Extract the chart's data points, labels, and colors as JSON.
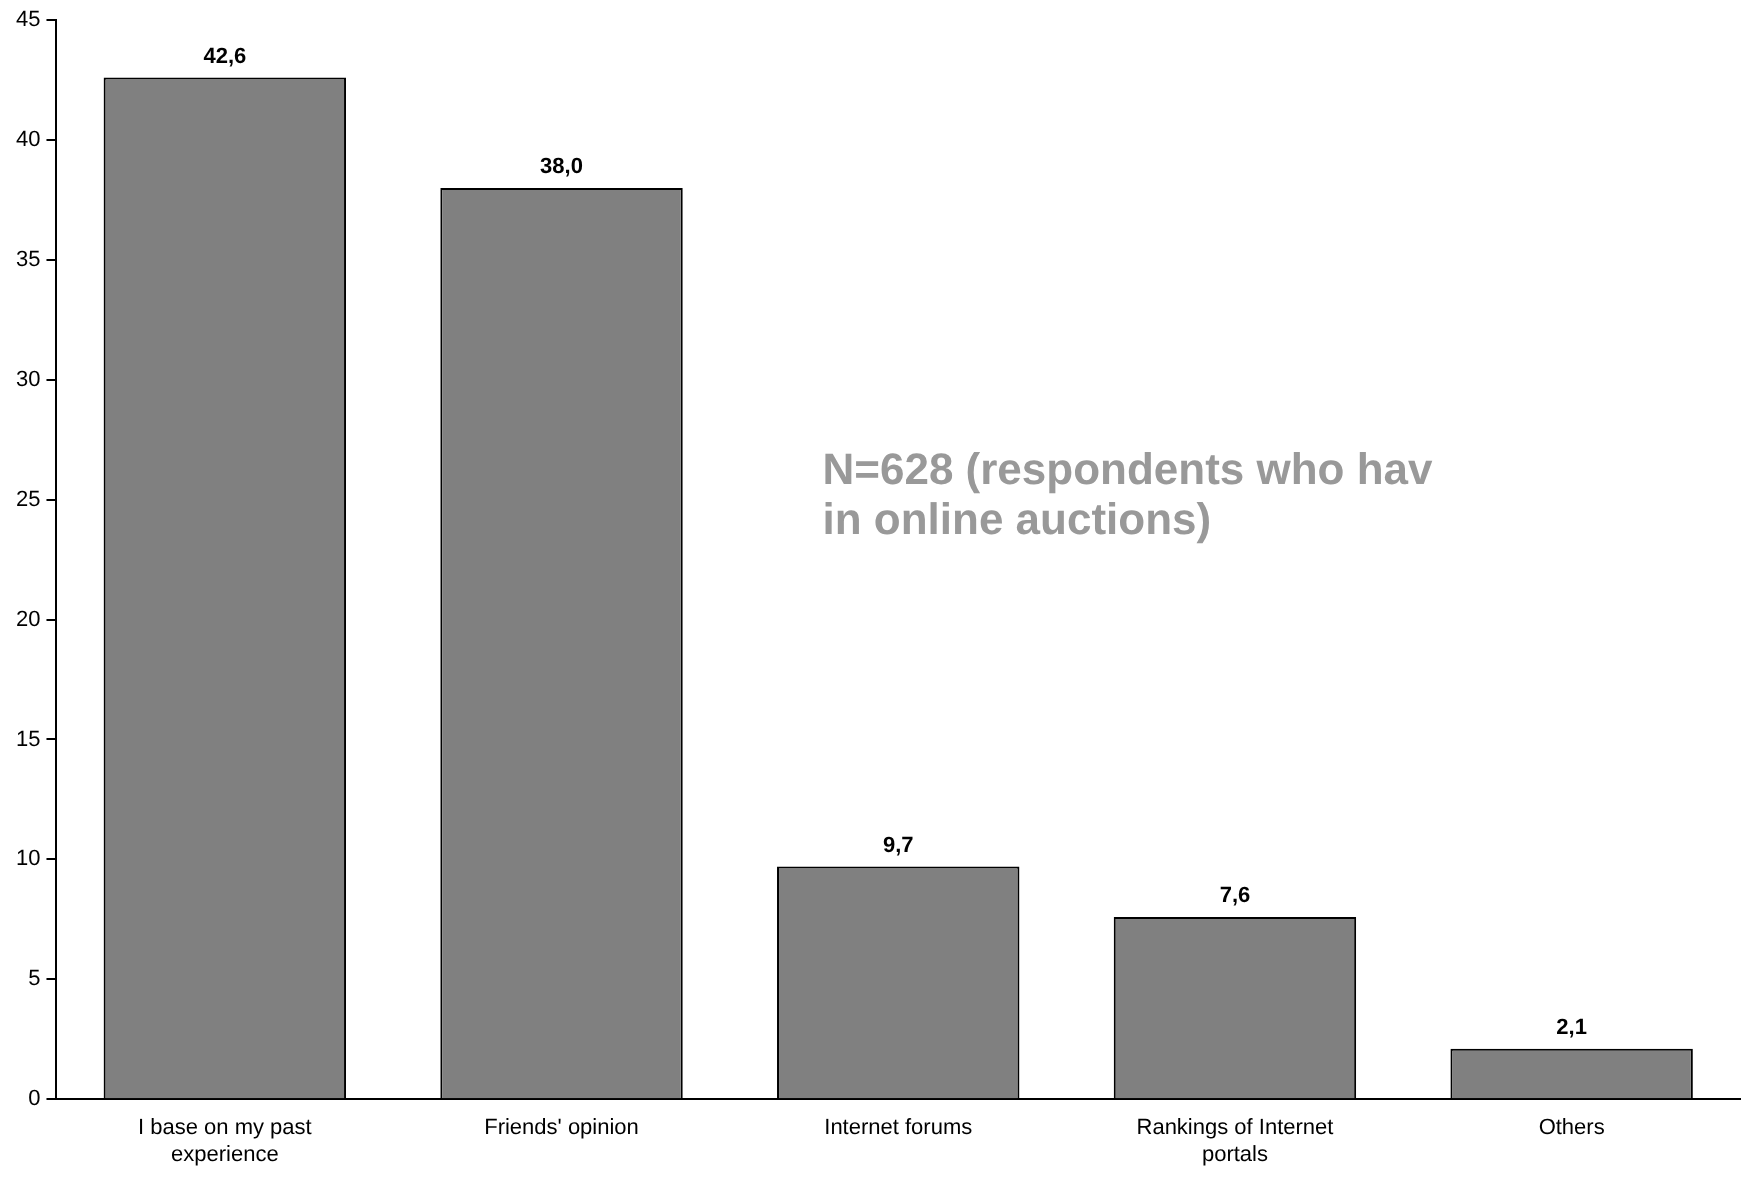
{
  "chart_data": {
    "type": "bar",
    "categories": [
      "I base on my past experience",
      "Friends' opinion",
      "Internet forums",
      "Rankings of Internet portals",
      "Others"
    ],
    "values": [
      42.6,
      38.0,
      9.7,
      7.6,
      2.1
    ],
    "value_labels": [
      "42,6",
      "38,0",
      "9,7",
      "7,6",
      "2,1"
    ],
    "color": "#808080",
    "ylim": [
      0,
      45
    ],
    "yticks": [
      0,
      5,
      10,
      15,
      20,
      25,
      30,
      35,
      40,
      45
    ],
    "grid": false,
    "legend": false,
    "annotations": [
      "N=628 (respondents who hav\nin online auctions)"
    ]
  }
}
